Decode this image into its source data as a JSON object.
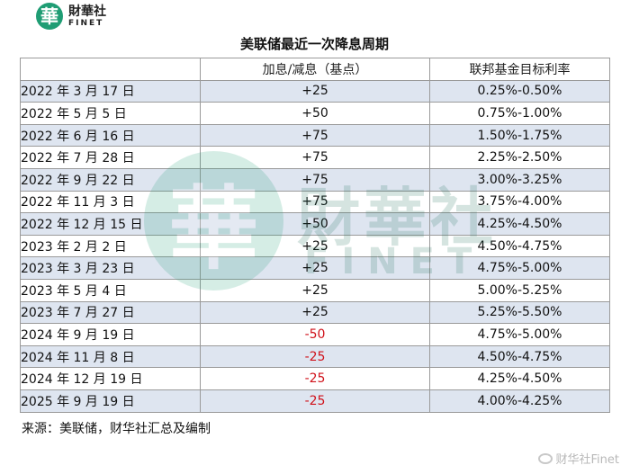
{
  "logo": {
    "mark": "華",
    "cn": "財華社",
    "en": "FINET"
  },
  "title": "美联储最近一次降息周期",
  "table": {
    "headers": [
      "",
      "加息/减息（基点）",
      "联邦基金目标利率"
    ],
    "rows": [
      {
        "date": "2022 年 3 月 17 日",
        "change": "+25",
        "rate": "0.25%-0.50%"
      },
      {
        "date": "2022 年 5 月 5 日",
        "change": "+50",
        "rate": "0.75%-1.00%"
      },
      {
        "date": "2022 年 6 月 16 日",
        "change": "+75",
        "rate": "1.50%-1.75%"
      },
      {
        "date": "2022 年 7 月 28 日",
        "change": "+75",
        "rate": "2.25%-2.50%"
      },
      {
        "date": "2022 年 9 月 22 日",
        "change": "+75",
        "rate": "3.00%-3.25%"
      },
      {
        "date": "2022 年 11 月 3 日",
        "change": "+75",
        "rate": "3.75%-4.00%"
      },
      {
        "date": "2022 年 12 月 15 日",
        "change": "+50",
        "rate": "4.25%-4.50%"
      },
      {
        "date": "2023 年 2 月 2 日",
        "change": "+25",
        "rate": "4.50%-4.75%"
      },
      {
        "date": "2023 年 3 月 23 日",
        "change": "+25",
        "rate": "4.75%-5.00%"
      },
      {
        "date": "2023 年 5 月 4 日",
        "change": "+25",
        "rate": "5.00%-5.25%"
      },
      {
        "date": "2023 年 7 月 27 日",
        "change": "+25",
        "rate": "5.25%-5.50%"
      },
      {
        "date": "2024 年 9 月 19 日",
        "change": "-50",
        "rate": "4.75%-5.00%"
      },
      {
        "date": "2024 年 11 月 8 日",
        "change": "-25",
        "rate": "4.50%-4.75%"
      },
      {
        "date": "2024 年 12 月 19 日",
        "change": "-25",
        "rate": "4.25%-4.50%"
      },
      {
        "date": "2025 年 9 月 19 日",
        "change": "-25",
        "rate": "4.00%-4.25%"
      }
    ]
  },
  "source": "来源：美联储，财华社汇总及编制",
  "watermark": {
    "mark": "華",
    "cn": "財華社",
    "en": "FINET"
  },
  "weibo": {
    "icon": "weibo-icon",
    "label": "财华社Finet"
  },
  "colors": {
    "cut": "#d0121b",
    "brand": "#1f9d74",
    "row_band": "#d6deec"
  }
}
